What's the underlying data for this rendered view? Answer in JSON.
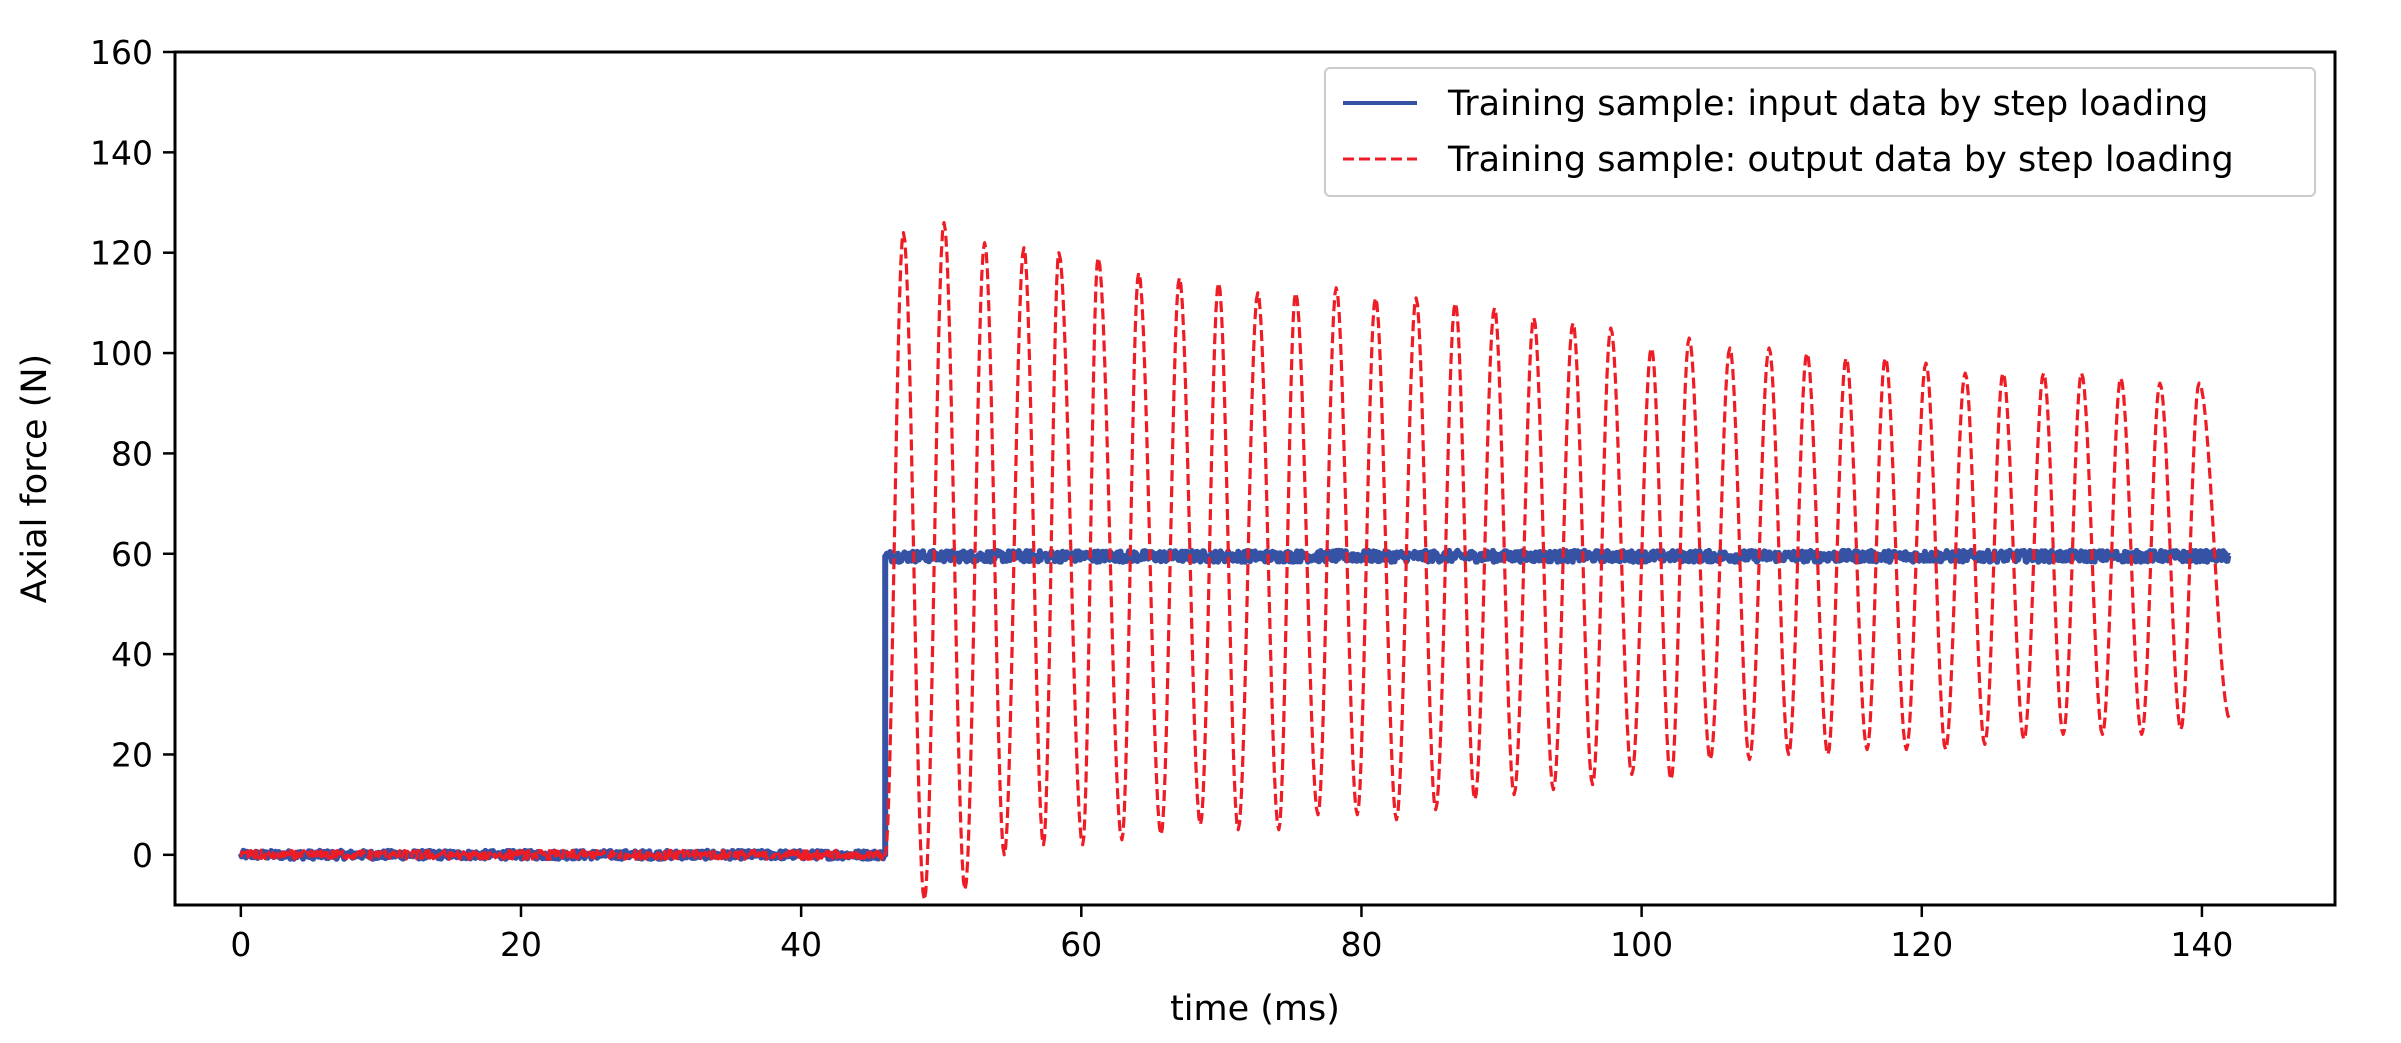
{
  "chart_data": {
    "type": "line",
    "title": "",
    "xlabel": "time (ms)",
    "ylabel": "Axial force (N)",
    "xlim": [
      -4.7,
      149.5
    ],
    "ylim": [
      -10,
      160
    ],
    "xticks": [
      0,
      20,
      40,
      60,
      80,
      100,
      120,
      140
    ],
    "yticks": [
      0,
      20,
      40,
      60,
      80,
      100,
      120,
      140,
      160
    ],
    "grid": false,
    "legend_position": "top-right",
    "step_time_ms": 46,
    "series": [
      {
        "name": "Training sample: input data by step loading",
        "color": "#3552a4",
        "style": "solid",
        "shape": "step",
        "pre_step_value": 0,
        "post_step_value": 59.5,
        "end_time_ms": 142
      },
      {
        "name": "Training sample: output data by step loading",
        "color": "#ee1c25",
        "style": "dashed",
        "shape": "damped-oscillation",
        "pre_step_value": 0,
        "end_time_ms": 142,
        "end_value": 27,
        "peaks": [
          {
            "t": 47.3,
            "v": 124
          },
          {
            "t": 50.2,
            "v": 126
          },
          {
            "t": 53.1,
            "v": 122
          },
          {
            "t": 55.9,
            "v": 121
          },
          {
            "t": 58.4,
            "v": 120
          },
          {
            "t": 61.2,
            "v": 119
          },
          {
            "t": 64.1,
            "v": 116
          },
          {
            "t": 67.0,
            "v": 115
          },
          {
            "t": 69.8,
            "v": 114
          },
          {
            "t": 72.6,
            "v": 112
          },
          {
            "t": 75.3,
            "v": 112
          },
          {
            "t": 78.2,
            "v": 113
          },
          {
            "t": 81.0,
            "v": 111
          },
          {
            "t": 83.9,
            "v": 111
          },
          {
            "t": 86.7,
            "v": 110
          },
          {
            "t": 89.5,
            "v": 109
          },
          {
            "t": 92.3,
            "v": 107
          },
          {
            "t": 95.1,
            "v": 106
          },
          {
            "t": 97.8,
            "v": 105
          },
          {
            "t": 100.7,
            "v": 101
          },
          {
            "t": 103.4,
            "v": 103
          },
          {
            "t": 106.3,
            "v": 101
          },
          {
            "t": 109.1,
            "v": 101
          },
          {
            "t": 111.8,
            "v": 100
          },
          {
            "t": 114.6,
            "v": 99
          },
          {
            "t": 117.4,
            "v": 99
          },
          {
            "t": 120.3,
            "v": 98
          },
          {
            "t": 123.1,
            "v": 96
          },
          {
            "t": 125.8,
            "v": 96
          },
          {
            "t": 128.7,
            "v": 96
          },
          {
            "t": 131.4,
            "v": 96
          },
          {
            "t": 134.2,
            "v": 95
          },
          {
            "t": 137.0,
            "v": 94
          },
          {
            "t": 139.8,
            "v": 94
          }
        ],
        "troughs": [
          {
            "t": 48.8,
            "v": -9
          },
          {
            "t": 51.7,
            "v": -7
          },
          {
            "t": 54.5,
            "v": 0
          },
          {
            "t": 57.3,
            "v": 2
          },
          {
            "t": 60.1,
            "v": 2
          },
          {
            "t": 62.9,
            "v": 3
          },
          {
            "t": 65.7,
            "v": 4
          },
          {
            "t": 68.5,
            "v": 6
          },
          {
            "t": 71.2,
            "v": 5
          },
          {
            "t": 74.1,
            "v": 5
          },
          {
            "t": 76.9,
            "v": 8
          },
          {
            "t": 79.7,
            "v": 8
          },
          {
            "t": 82.5,
            "v": 7
          },
          {
            "t": 85.3,
            "v": 9
          },
          {
            "t": 88.1,
            "v": 11
          },
          {
            "t": 90.9,
            "v": 12
          },
          {
            "t": 93.7,
            "v": 13
          },
          {
            "t": 96.5,
            "v": 14
          },
          {
            "t": 99.3,
            "v": 16
          },
          {
            "t": 102.1,
            "v": 15
          },
          {
            "t": 104.9,
            "v": 19
          },
          {
            "t": 107.7,
            "v": 19
          },
          {
            "t": 110.5,
            "v": 20
          },
          {
            "t": 113.3,
            "v": 20
          },
          {
            "t": 116.1,
            "v": 21
          },
          {
            "t": 118.9,
            "v": 21
          },
          {
            "t": 121.7,
            "v": 21
          },
          {
            "t": 124.5,
            "v": 22
          },
          {
            "t": 127.3,
            "v": 23
          },
          {
            "t": 130.1,
            "v": 24
          },
          {
            "t": 132.9,
            "v": 24
          },
          {
            "t": 135.7,
            "v": 24
          },
          {
            "t": 138.5,
            "v": 25
          }
        ]
      }
    ]
  }
}
